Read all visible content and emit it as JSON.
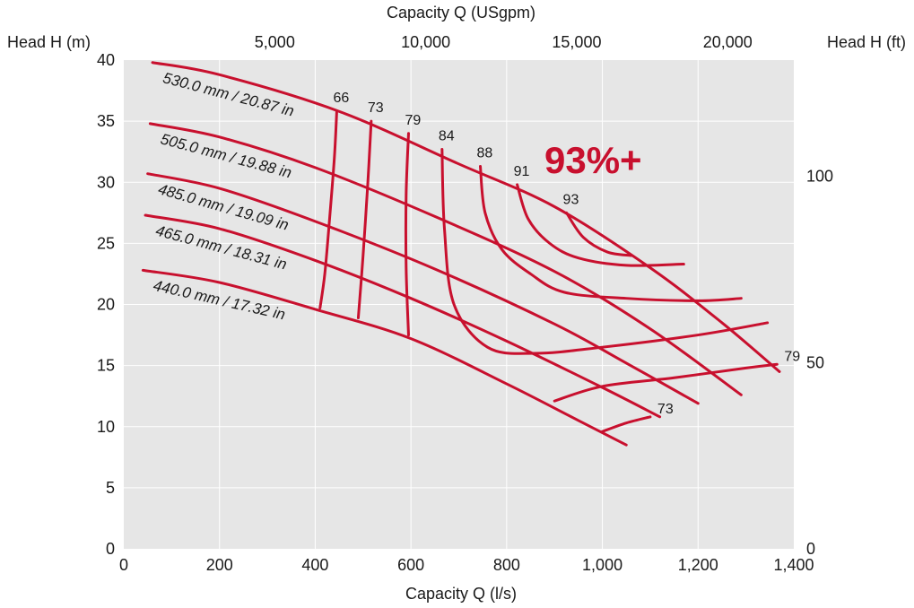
{
  "chart_data": {
    "type": "line",
    "x_axis": {
      "label": "Capacity Q (l/s)",
      "range": [
        0,
        1400
      ],
      "ticks": [
        0,
        200,
        400,
        600,
        800,
        1000,
        1200,
        1400
      ],
      "tick_labels": [
        "0",
        "200",
        "400",
        "600",
        "800",
        "1,000",
        "1,200",
        "1,400"
      ]
    },
    "x2_axis": {
      "label": "Capacity Q (USgpm)",
      "ticks_gpm": [
        5000,
        10000,
        15000,
        20000
      ],
      "tick_labels": [
        "5,000",
        "10,000",
        "15,000",
        "20,000"
      ]
    },
    "y_axis": {
      "label": "Head H (m)",
      "range": [
        0,
        40
      ],
      "ticks": [
        0,
        5,
        10,
        15,
        20,
        25,
        30,
        35,
        40
      ],
      "tick_labels": [
        "0",
        "5",
        "10",
        "15",
        "20",
        "25",
        "30",
        "35",
        "40"
      ]
    },
    "y2_axis": {
      "label": "Head H (ft)",
      "ticks_ft": [
        0,
        50,
        100
      ],
      "tick_labels": [
        "0",
        "50",
        "100"
      ]
    },
    "grid": true,
    "background_color": "#e6e6e6",
    "line_color": "#c8102e",
    "highlight_label": "93%+",
    "impeller_curves": [
      {
        "name": "530.0 mm / 20.87 in",
        "points": [
          [
            60,
            39.8
          ],
          [
            200,
            38.8
          ],
          [
            450,
            35.8
          ],
          [
            700,
            31.5
          ],
          [
            900,
            28
          ],
          [
            1100,
            23
          ],
          [
            1250,
            18.5
          ],
          [
            1370,
            14.5
          ]
        ]
      },
      {
        "name": "505.0 mm / 19.88 in",
        "points": [
          [
            55,
            34.8
          ],
          [
            200,
            33.7
          ],
          [
            400,
            31.2
          ],
          [
            650,
            27.2
          ],
          [
            900,
            22.7
          ],
          [
            1100,
            18
          ],
          [
            1290,
            12.6
          ]
        ]
      },
      {
        "name": "485.0 mm / 19.09 in",
        "points": [
          [
            50,
            30.7
          ],
          [
            200,
            29.5
          ],
          [
            400,
            26.8
          ],
          [
            650,
            22.9
          ],
          [
            900,
            18.4
          ],
          [
            1050,
            15.2
          ],
          [
            1200,
            11.9
          ]
        ]
      },
      {
        "name": "465.0 mm / 18.31 in",
        "points": [
          [
            45,
            27.3
          ],
          [
            200,
            26.2
          ],
          [
            400,
            23.6
          ],
          [
            600,
            20.5
          ],
          [
            800,
            17
          ],
          [
            1000,
            13.2
          ],
          [
            1120,
            10.8
          ]
        ]
      },
      {
        "name": "440.0 mm / 17.32 in",
        "points": [
          [
            40,
            22.8
          ],
          [
            200,
            21.8
          ],
          [
            400,
            19.6
          ],
          [
            600,
            17.2
          ],
          [
            800,
            13.5
          ],
          [
            950,
            10.5
          ],
          [
            1050,
            8.5
          ]
        ]
      }
    ],
    "efficiency_curves": [
      {
        "name": "66",
        "points": [
          [
            445,
            35.8
          ],
          [
            440,
            32
          ],
          [
            430,
            27
          ],
          [
            420,
            22.5
          ],
          [
            410,
            19.7
          ]
        ]
      },
      {
        "name": "73",
        "points": [
          [
            517,
            35
          ],
          [
            510,
            30
          ],
          [
            500,
            24
          ],
          [
            490,
            18.9
          ]
        ]
      },
      {
        "name": "79",
        "points": [
          [
            595,
            34
          ],
          [
            590,
            29
          ],
          [
            590,
            23
          ],
          [
            595,
            17.5
          ]
        ]
      },
      {
        "name": "84",
        "points": [
          [
            665,
            32.7
          ],
          [
            670,
            26.2
          ],
          [
            690,
            20
          ],
          [
            760,
            16.5
          ],
          [
            860,
            16
          ],
          [
            1000,
            16.5
          ],
          [
            1200,
            17.5
          ],
          [
            1345,
            18.5
          ]
        ]
      },
      {
        "name": "88",
        "points": [
          [
            745,
            31.3
          ],
          [
            755,
            27.5
          ],
          [
            790,
            24.5
          ],
          [
            850,
            22.5
          ],
          [
            920,
            21
          ],
          [
            1050,
            20.5
          ],
          [
            1200,
            20.3
          ],
          [
            1290,
            20.5
          ]
        ]
      },
      {
        "name": "91",
        "points": [
          [
            822,
            29.8
          ],
          [
            845,
            27
          ],
          [
            890,
            25
          ],
          [
            950,
            23.8
          ],
          [
            1050,
            23.2
          ],
          [
            1170,
            23.3
          ]
        ]
      },
      {
        "name": "93",
        "points": [
          [
            925,
            27.5
          ],
          [
            960,
            25.5
          ],
          [
            1010,
            24.3
          ],
          [
            1060,
            24
          ]
        ]
      },
      {
        "name": "79",
        "points": [
          [
            900,
            12.1
          ],
          [
            1000,
            13.3
          ],
          [
            1150,
            14
          ],
          [
            1300,
            14.8
          ],
          [
            1365,
            15.1
          ]
        ]
      },
      {
        "name": "73",
        "points": [
          [
            1000,
            9.6
          ],
          [
            1050,
            10.3
          ],
          [
            1100,
            10.8
          ]
        ]
      }
    ]
  }
}
